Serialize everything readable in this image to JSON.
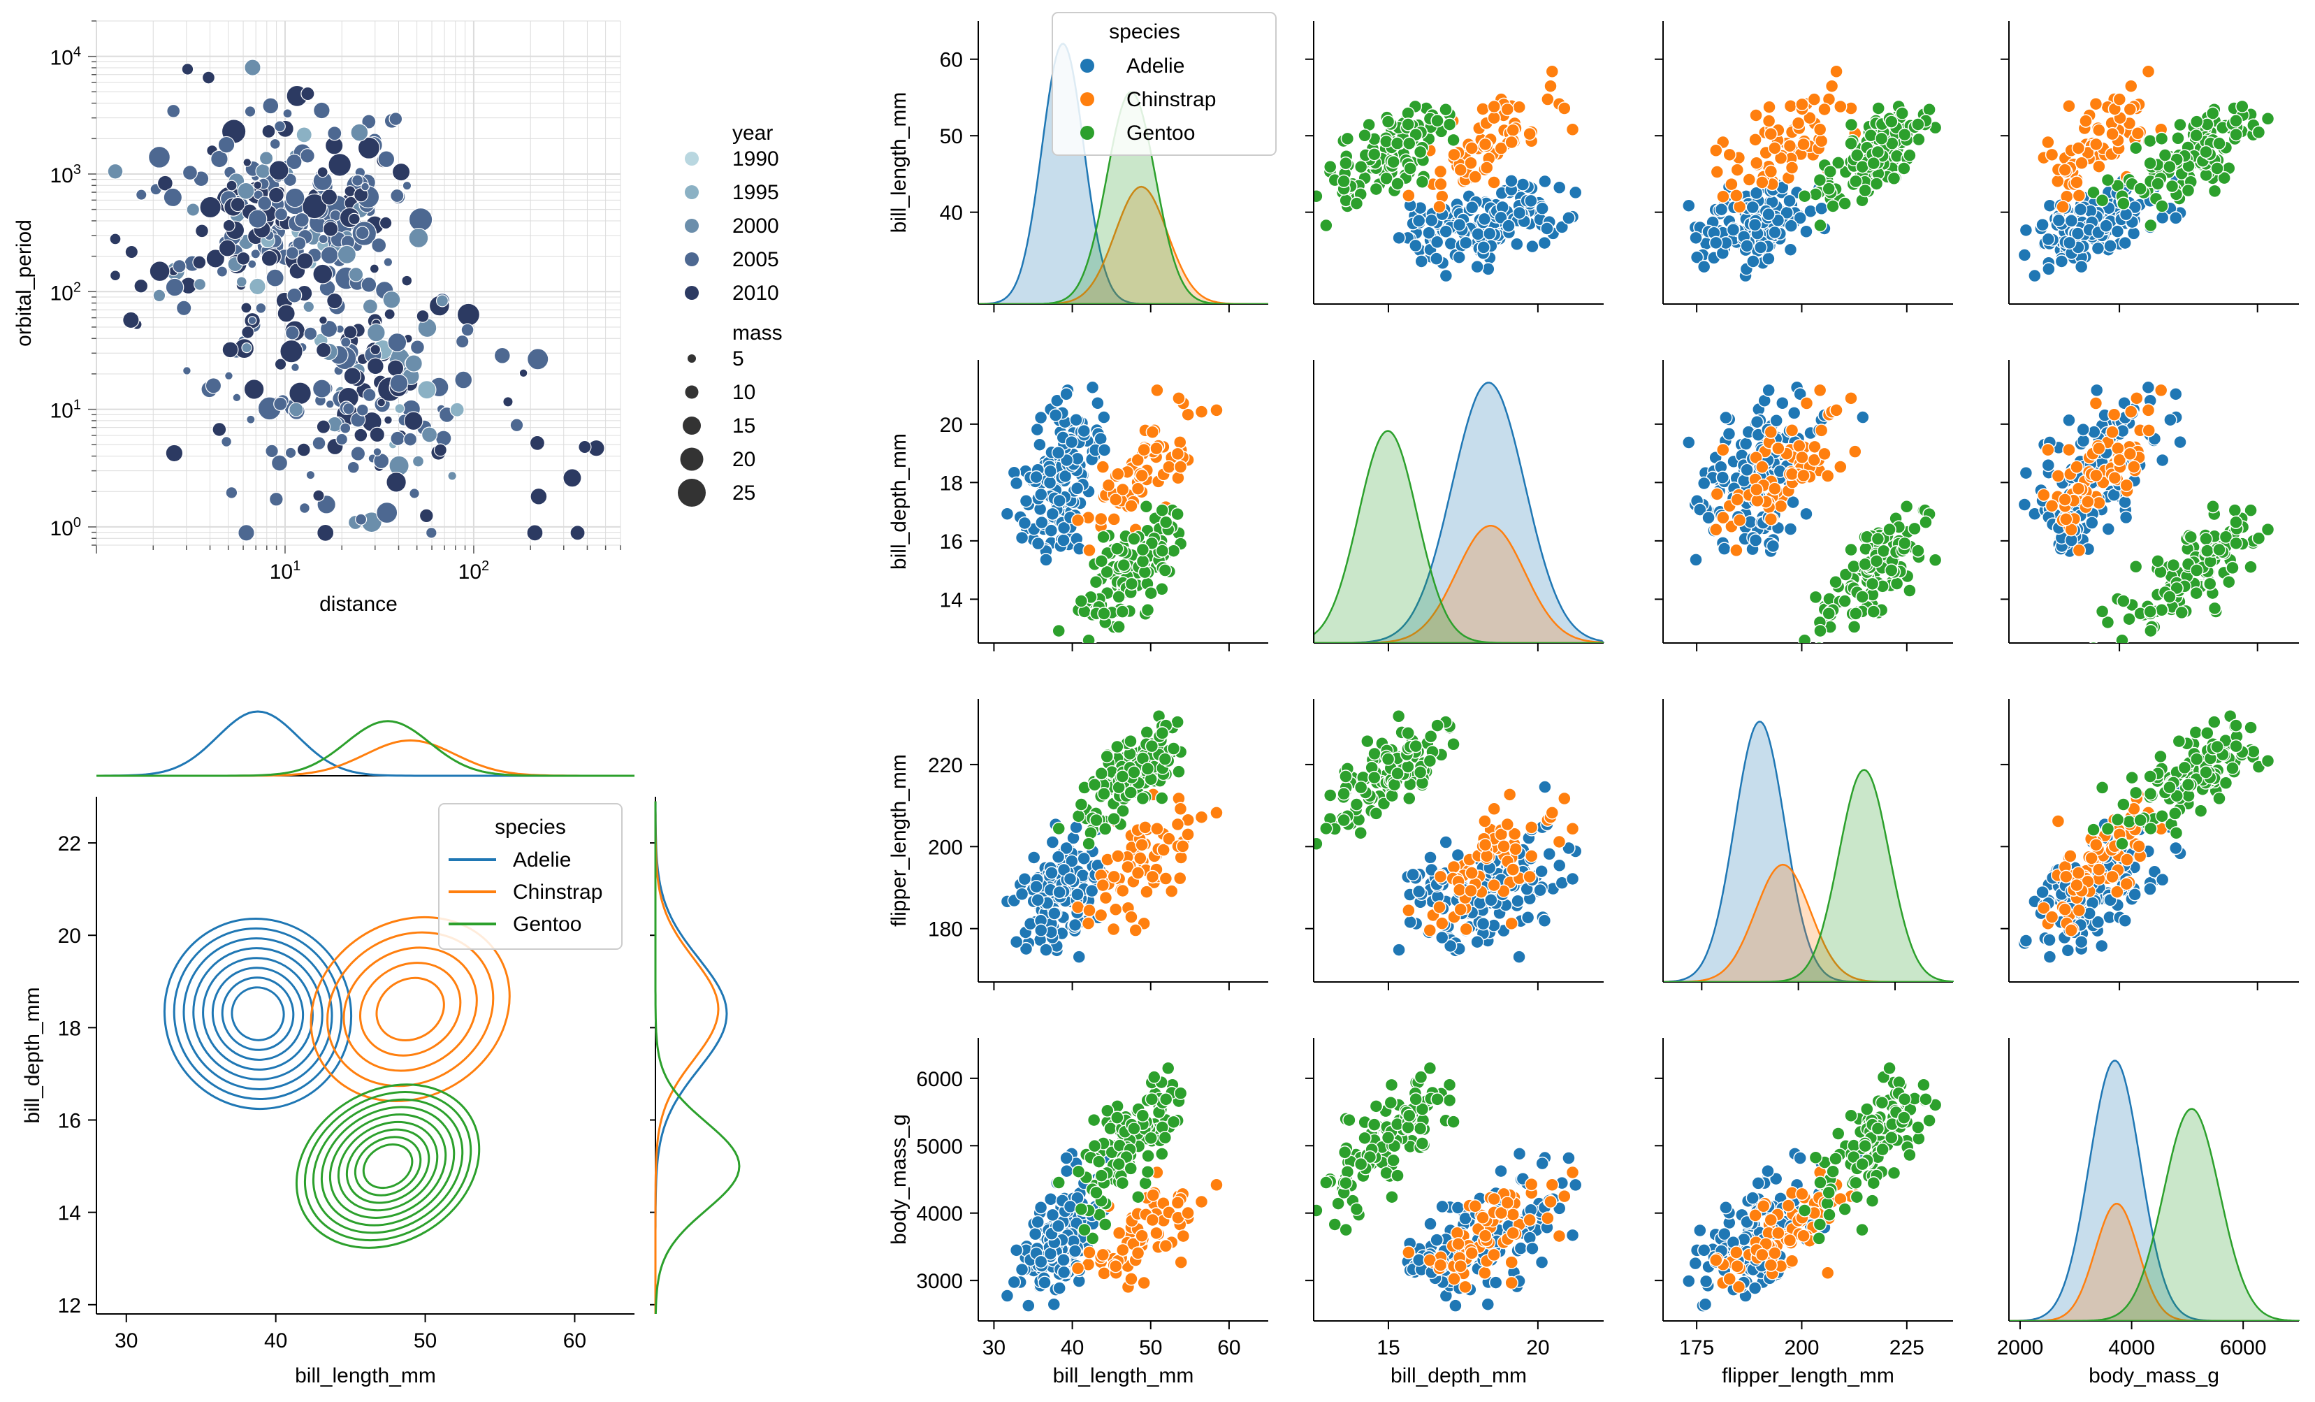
{
  "colors": {
    "adelie": "#1f77b4",
    "chinstrap": "#ff7f0e",
    "gentoo": "#2ca02c",
    "year_ramp": [
      "#b9d7e0",
      "#8bb1c4",
      "#6b8eab",
      "#4d6891",
      "#2c3a62"
    ]
  },
  "chart_data": [
    {
      "id": "planets",
      "type": "scatter",
      "xlabel": "distance",
      "ylabel": "orbital_period",
      "xscale": "log",
      "yscale": "log",
      "xlim": [
        1.0,
        600
      ],
      "ylim": [
        0.7,
        20000
      ],
      "x_ticks": [
        {
          "v": 10,
          "base": "10",
          "exp": "1"
        },
        {
          "v": 100,
          "base": "10",
          "exp": "2"
        }
      ],
      "y_ticks": [
        {
          "v": 1,
          "base": "10",
          "exp": "0"
        },
        {
          "v": 10,
          "base": "10",
          "exp": "1"
        },
        {
          "v": 100,
          "base": "10",
          "exp": "2"
        },
        {
          "v": 1000,
          "base": "10",
          "exp": "3"
        },
        {
          "v": 10000,
          "base": "10",
          "exp": "4"
        }
      ],
      "grid": "major and minor",
      "legend": {
        "hue_title": "year",
        "hue_entries": [
          "1990",
          "1995",
          "2000",
          "2005",
          "2010"
        ],
        "size_title": "mass",
        "size_entries": [
          "5",
          "10",
          "15",
          "20",
          "25"
        ],
        "placement": "right outside"
      },
      "points_note": "about 440 planets; each point is [distance, orbital_period, year, mass]",
      "points": []
    },
    {
      "id": "jointkde",
      "type": "kde-contour",
      "xlabel": "bill_length_mm",
      "ylabel": "bill_depth_mm",
      "xlim": [
        28,
        64
      ],
      "ylim": [
        11.8,
        23.0
      ],
      "x_ticks": [
        30,
        40,
        50,
        60
      ],
      "y_ticks": [
        12,
        14,
        16,
        18,
        20,
        22
      ],
      "legend": {
        "title": "species",
        "entries": [
          "Adelie",
          "Chinstrap",
          "Gentoo"
        ],
        "placement": "upper right"
      },
      "series": [
        {
          "name": "Adelie",
          "color_key": "adelie",
          "center": [
            38.8,
            18.3
          ],
          "sd": [
            2.7,
            1.2
          ],
          "rho": 0.4,
          "levels": 8
        },
        {
          "name": "Chinstrap",
          "color_key": "chinstrap",
          "center": [
            49.0,
            18.4
          ],
          "sd": [
            3.0,
            1.1
          ],
          "rho": 0.6,
          "levels": 5
        },
        {
          "name": "Gentoo",
          "color_key": "gentoo",
          "center": [
            47.5,
            15.0
          ],
          "sd": [
            2.8,
            0.95
          ],
          "rho": 0.65,
          "levels": 9
        }
      ]
    },
    {
      "id": "pairplot",
      "type": "pairgrid",
      "hue": "species",
      "legend": {
        "title": "species",
        "entries": [
          "Adelie",
          "Chinstrap",
          "Gentoo"
        ],
        "placement": "upper left of first panel"
      },
      "variables": [
        {
          "name": "bill_length_mm",
          "lim": [
            28,
            65
          ],
          "ticks": [
            30,
            40,
            50,
            60
          ],
          "label_ticks": [
            40,
            50,
            60
          ]
        },
        {
          "name": "bill_depth_mm",
          "lim": [
            12.5,
            22.2
          ],
          "ticks": [
            15,
            20
          ],
          "label_ticks": [
            14,
            16,
            18,
            20
          ]
        },
        {
          "name": "flipper_length_mm",
          "lim": [
            167,
            236
          ],
          "ticks": [
            175,
            200,
            225
          ],
          "label_ticks": [
            180,
            200,
            220
          ]
        },
        {
          "name": "body_mass_g",
          "lim": [
            2400,
            6600
          ],
          "ticks": [
            2000,
            4000,
            6000
          ],
          "label_ticks": [
            3000,
            4000,
            5000,
            6000
          ]
        }
      ],
      "diag_xlim": {
        "bill_length_mm": [
          28,
          65
        ],
        "bill_depth_mm": [
          12.5,
          22.2
        ],
        "flipper_length_mm": [
          165,
          240
        ],
        "body_mass_g": [
          1800,
          7000
        ]
      },
      "species": [
        {
          "name": "Adelie",
          "color_key": "adelie",
          "n": 151,
          "mean": [
            38.8,
            18.35,
            190,
            3700
          ],
          "sd": [
            2.66,
            1.22,
            6.5,
            458
          ],
          "corr": [
            [
              1,
              0.39,
              0.33,
              0.55
            ],
            [
              0.39,
              1,
              0.31,
              0.58
            ],
            [
              0.33,
              0.31,
              1,
              0.47
            ],
            [
              0.55,
              0.58,
              0.47,
              1
            ]
          ]
        },
        {
          "name": "Chinstrap",
          "color_key": "chinstrap",
          "n": 68,
          "mean": [
            48.8,
            18.42,
            196,
            3733
          ],
          "sd": [
            3.34,
            1.14,
            7.1,
            384
          ],
          "corr": [
            [
              1,
              0.65,
              0.47,
              0.51
            ],
            [
              0.65,
              1,
              0.58,
              0.6
            ],
            [
              0.47,
              0.58,
              1,
              0.64
            ],
            [
              0.51,
              0.6,
              0.64,
              1
            ]
          ]
        },
        {
          "name": "Gentoo",
          "color_key": "gentoo",
          "n": 123,
          "mean": [
            47.5,
            14.98,
            217,
            5076
          ],
          "sd": [
            3.08,
            0.98,
            6.5,
            504
          ],
          "corr": [
            [
              1,
              0.64,
              0.66,
              0.67
            ],
            [
              0.64,
              1,
              0.7,
              0.72
            ],
            [
              0.66,
              0.7,
              1,
              0.7
            ],
            [
              0.67,
              0.72,
              0.7,
              1
            ]
          ]
        }
      ]
    }
  ]
}
